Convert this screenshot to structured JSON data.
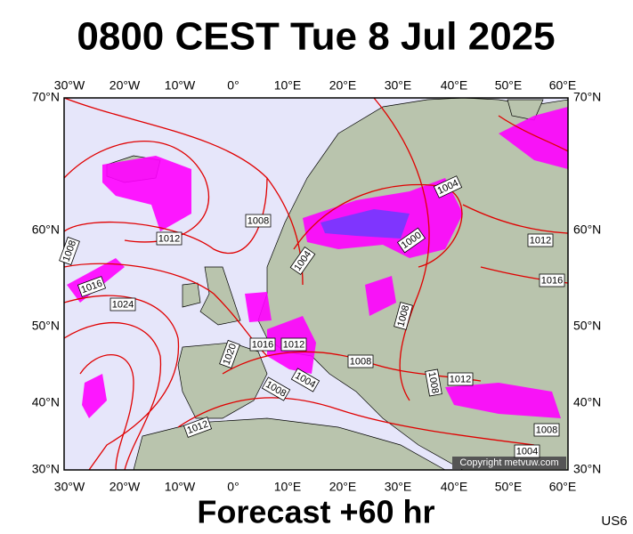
{
  "header": {
    "title": "0800 CEST Tue 8 Jul 2025"
  },
  "axes": {
    "longitudes": [
      "30°W",
      "20°W",
      "10°W",
      "0°",
      "10°E",
      "20°E",
      "30°E",
      "40°E",
      "50°E",
      "60°E"
    ],
    "latitudes": [
      "70°N",
      "60°N",
      "50°N",
      "40°N",
      "30°N"
    ]
  },
  "isobar_labels": [
    "1008",
    "1012",
    "1008",
    "1016",
    "1024",
    "1004",
    "1000",
    "1004",
    "1012",
    "1016",
    "1008",
    "1016",
    "1012",
    "1020",
    "1008",
    "1008",
    "1004",
    "1008",
    "1012",
    "1012",
    "1004",
    "1008"
  ],
  "copyright": "Copyright metvuw.com",
  "footer": {
    "forecast": "Forecast +60 hr",
    "code": "US6"
  }
}
